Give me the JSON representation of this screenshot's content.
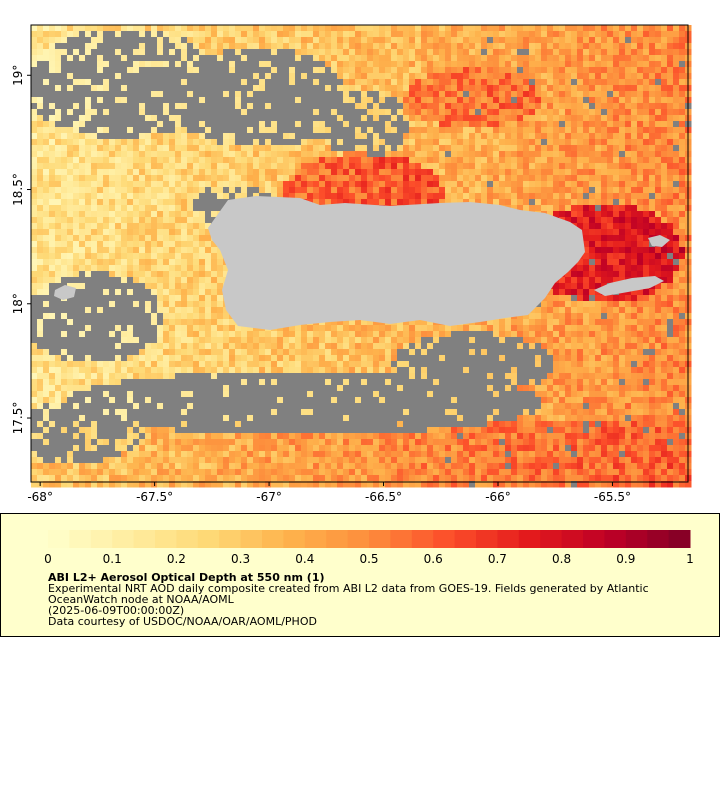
{
  "map": {
    "lon_ticks": [
      "-68°",
      "-67.5°",
      "-67°",
      "-66.5°",
      "-66°",
      "-65.5°"
    ],
    "lon_values": [
      -68,
      -67.5,
      -67,
      -66.5,
      -66,
      -65.5
    ],
    "lat_ticks": [
      "19°",
      "18.5°",
      "18°",
      "17.5°"
    ],
    "lat_values": [
      19,
      18.5,
      18,
      17.5
    ],
    "lon_range": [
      -68.04,
      -65.17
    ],
    "lat_range": [
      17.22,
      19.22
    ],
    "colors": {
      "no_data": "#808080",
      "land": "#c8c8c8",
      "frame": "#000000"
    }
  },
  "legend": {
    "title": "ABI L2+ Aerosol Optical Depth at 550 nm (1)",
    "description": "Experimental NRT AOD daily composite created from ABI L2 data from GOES-19. Fields generated by Atlantic OceanWatch node at NOAA/AOML",
    "date": "(2025-06-09T00:00:00Z)",
    "credit": "Data courtesy of USDOC/NOAA/OAR/AOML/PHOD",
    "tick_labels": [
      "0",
      "0.1",
      "0.2",
      "0.3",
      "0.4",
      "0.5",
      "0.6",
      "0.7",
      "0.8",
      "0.9",
      "1"
    ],
    "range": [
      0,
      1
    ],
    "palette": [
      "#ffffcc",
      "#ffeda0",
      "#fed976",
      "#feb24c",
      "#fd8d3c",
      "#fc4e2a",
      "#e31a1c",
      "#bd0026",
      "#800026"
    ]
  }
}
